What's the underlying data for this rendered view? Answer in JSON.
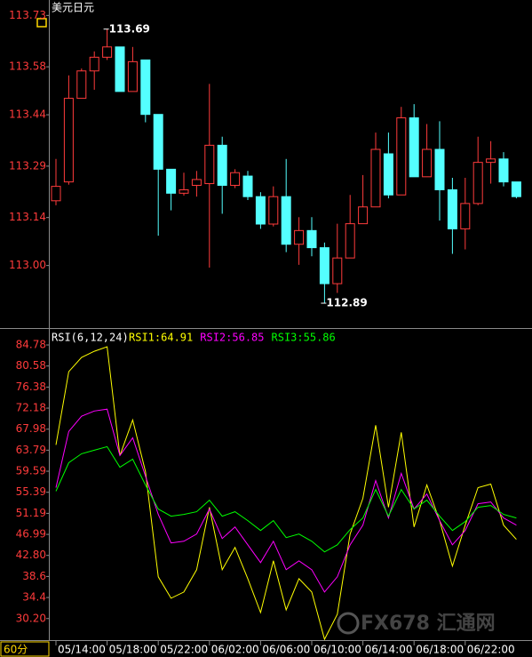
{
  "chart_data": [
    {
      "type": "candlestick",
      "title": "美元日元",
      "up_color": "#ff3b3b",
      "down_color": "#54ffff",
      "open": [
        113.189,
        113.244,
        113.488,
        113.568,
        113.608,
        113.638,
        113.508,
        113.6,
        113.441,
        113.281,
        113.211,
        113.234,
        113.239,
        113.351,
        113.234,
        113.261,
        113.201,
        113.121,
        113.201,
        113.062,
        113.102,
        113.052,
        112.947,
        113.022,
        113.122,
        113.171,
        113.326,
        113.206,
        113.431,
        113.259,
        113.339,
        113.221,
        113.107,
        113.181,
        113.301,
        113.311,
        113.244
      ],
      "high": [
        113.311,
        113.555,
        113.575,
        113.625,
        113.69,
        113.638,
        113.638,
        113.6,
        113.441,
        113.281,
        113.271,
        113.276,
        113.53,
        113.376,
        113.281,
        113.276,
        113.214,
        113.231,
        113.311,
        113.141,
        113.141,
        113.067,
        113.122,
        113.206,
        113.264,
        113.388,
        113.388,
        113.463,
        113.471,
        113.413,
        113.421,
        113.256,
        113.256,
        113.376,
        113.363,
        113.331,
        113.244
      ],
      "low": [
        113.176,
        113.236,
        113.488,
        113.513,
        113.6,
        113.508,
        113.508,
        113.418,
        113.087,
        113.161,
        113.204,
        113.201,
        112.994,
        113.151,
        113.226,
        113.191,
        113.107,
        113.114,
        113.039,
        113.002,
        113.027,
        112.89,
        112.92,
        113.022,
        113.122,
        113.171,
        113.196,
        113.206,
        113.259,
        113.259,
        113.131,
        113.034,
        113.047,
        113.176,
        113.239,
        113.231,
        113.196
      ],
      "close": [
        113.231,
        113.488,
        113.568,
        113.608,
        113.638,
        113.508,
        113.595,
        113.441,
        113.281,
        113.211,
        113.221,
        113.251,
        113.351,
        113.234,
        113.271,
        113.201,
        113.121,
        113.201,
        113.062,
        113.102,
        113.052,
        112.947,
        113.022,
        113.122,
        113.171,
        113.339,
        113.206,
        113.431,
        113.259,
        113.339,
        113.221,
        113.107,
        113.181,
        113.301,
        113.311,
        113.244,
        113.201
      ],
      "ylim": [
        112.82,
        113.775
      ],
      "yticks": [
        113.73,
        113.58,
        113.44,
        113.29,
        113.14,
        {
          "value": 113,
          "label": "113.00"
        }
      ]
    },
    {
      "type": "line",
      "title": "RSI(6,12,24)",
      "period": "60分",
      "watermark": "FX678 汇通网",
      "categories": [
        "05/14:00",
        null,
        null,
        null,
        "05/18:00",
        null,
        null,
        null,
        "05/22:00",
        null,
        null,
        null,
        "06/02:00",
        null,
        null,
        null,
        "06/06:00",
        null,
        null,
        null,
        "06/10:00",
        null,
        null,
        null,
        "06/14:00",
        null,
        null,
        null,
        "06/18:00",
        null,
        null,
        null,
        "06/22:00",
        null,
        null,
        null,
        null
      ],
      "series": [
        {
          "name": "RSI1:64.91",
          "color": "#ffff00",
          "values": [
            64.85,
            79.44,
            82.29,
            83.53,
            84.42,
            62.72,
            69.83,
            59.51,
            38.52,
            34.25,
            35.49,
            39.94,
            52.4,
            39.94,
            44.39,
            38.16,
            31.4,
            41.72,
            31.93,
            38.16,
            35.49,
            26.06,
            31.04,
            47.06,
            54.18,
            68.77,
            52.4,
            67.34,
            48.48,
            56.84,
            49.73,
            40.65,
            48.84,
            56.31,
            57.02,
            48.84,
            45.99
          ]
        },
        {
          "name": "RSI2:56.85",
          "color": "#ff00ff",
          "values": [
            56.31,
            67.52,
            70.55,
            71.61,
            71.97,
            62.72,
            66.27,
            58.62,
            50.97,
            45.28,
            45.63,
            47.06,
            52.04,
            46.17,
            48.48,
            44.92,
            41.36,
            45.63,
            39.94,
            41.72,
            39.94,
            35.49,
            38.52,
            44.92,
            48.84,
            57.73,
            50.26,
            59.16,
            52.04,
            55.06,
            49.73,
            44.92,
            47.77,
            53.11,
            53.46,
            50.26,
            48.84
          ]
        },
        {
          "name": "RSI3:55.86",
          "color": "#00ff00",
          "values": [
            55.6,
            61.29,
            63.07,
            63.78,
            64.5,
            60.4,
            62.0,
            56.84,
            52.04,
            50.62,
            50.97,
            51.51,
            53.82,
            50.62,
            51.51,
            49.73,
            47.77,
            49.73,
            46.35,
            47.06,
            45.63,
            43.5,
            44.92,
            47.95,
            50.26,
            55.95,
            50.62,
            55.95,
            52.04,
            53.82,
            50.62,
            47.77,
            49.55,
            52.4,
            52.75,
            50.97,
            50.26
          ]
        }
      ],
      "ylim": [
        25.9,
        86.2
      ],
      "yticks": [
        84.78,
        80.58,
        76.38,
        72.18,
        67.98,
        63.79,
        59.59,
        55.39,
        51.19,
        46.99,
        {
          "value": 42.8,
          "label": "42.80"
        },
        38.6,
        34.4,
        {
          "value": 30.2,
          "label": "30.20"
        }
      ]
    }
  ]
}
